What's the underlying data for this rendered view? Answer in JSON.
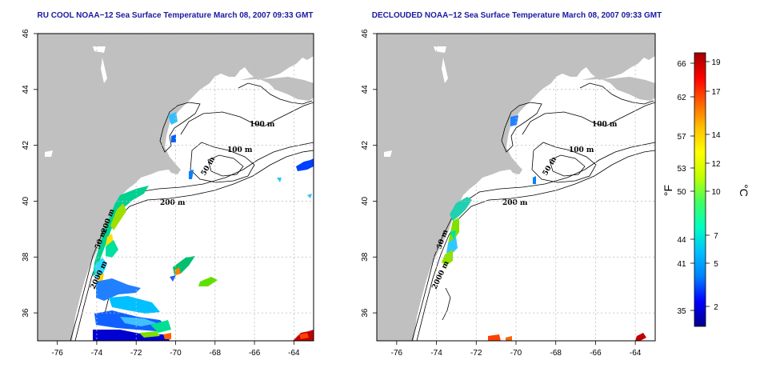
{
  "colors": {
    "land": "#c0c0c0",
    "ocean": "#ffffff",
    "title": "#1a1aa0",
    "grid": "#bdbdbd",
    "contour": "#000000"
  },
  "panels": [
    {
      "id": "ru-cool",
      "title": "RU COOL NOAA−12 Sea Surface Temperature March 08, 2007 09:33 GMT",
      "contour_labels": [
        "100 m",
        "100 m",
        "50 m",
        "200 m",
        "50 m",
        "200 m",
        "2000 m"
      ]
    },
    {
      "id": "declouded",
      "title": "DECLOUDED NOAA−12 Sea Surface Temperature March 08, 2007 09:33 GMT",
      "contour_labels": [
        "100 m",
        "100 m",
        "50 m",
        "200 m",
        "50 m",
        "2000 m"
      ]
    }
  ],
  "map_axes": {
    "lon_ticks": [
      "-76",
      "-74",
      "-72",
      "-70",
      "-68",
      "-66",
      "-64"
    ],
    "lat_ticks": [
      "46",
      "44",
      "42",
      "40",
      "38",
      "36"
    ],
    "lon_range": [
      -77,
      -63
    ],
    "lat_range": [
      35,
      46
    ]
  },
  "colorbar": {
    "celsius_label": "°C",
    "fahrenheit_label": "°F",
    "celsius_ticks": [
      "19",
      "17",
      "14",
      "12",
      "10",
      "7",
      "5",
      "2"
    ],
    "fahrenheit_ticks": [
      "66",
      "62",
      "57",
      "53",
      "50",
      "44",
      "41",
      "35"
    ],
    "gradient_stops": [
      "#00008b",
      "#0000ff",
      "#0080ff",
      "#00c0ff",
      "#00ffc0",
      "#40ff60",
      "#c0ff00",
      "#ffff00",
      "#ffc000",
      "#ff6000",
      "#ff0000",
      "#a00000"
    ]
  }
}
